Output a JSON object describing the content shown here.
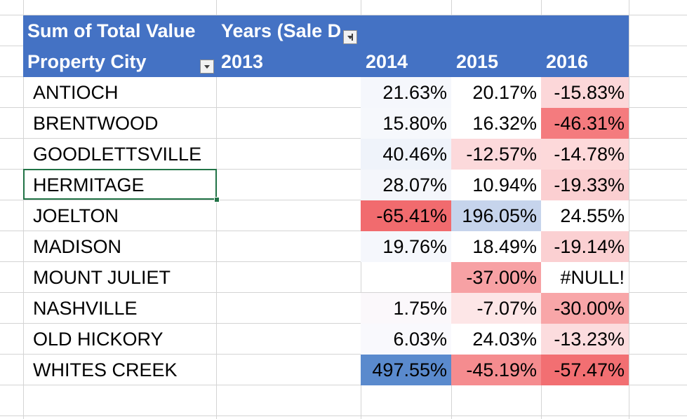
{
  "pivot": {
    "values_label": "Sum of Total Value",
    "columns_label": "Years (Sale D",
    "rows_label": "Property City",
    "year_headers": [
      "2013",
      "2014",
      "2015",
      "2016"
    ]
  },
  "rows": [
    {
      "city": "ANTIOCH",
      "cells": [
        {
          "text": "",
          "bg": ""
        },
        {
          "text": "21.63%",
          "bg": "#f5f7fc"
        },
        {
          "text": "20.17%",
          "bg": "#ffffff"
        },
        {
          "text": "-15.83%",
          "bg": "#fcd7d9"
        }
      ]
    },
    {
      "city": "BRENTWOOD",
      "cells": [
        {
          "text": "",
          "bg": ""
        },
        {
          "text": "15.80%",
          "bg": "#f6f8fc"
        },
        {
          "text": "16.32%",
          "bg": "#ffffff"
        },
        {
          "text": "-46.31%",
          "bg": "#f47b7e"
        }
      ]
    },
    {
      "city": "GOODLETTSVILLE",
      "cells": [
        {
          "text": "",
          "bg": ""
        },
        {
          "text": "40.46%",
          "bg": "#eff3fa"
        },
        {
          "text": "-12.57%",
          "bg": "#fcd9db"
        },
        {
          "text": "-14.78%",
          "bg": "#fdd9da"
        }
      ]
    },
    {
      "city": "HERMITAGE",
      "cells": [
        {
          "text": "",
          "bg": ""
        },
        {
          "text": "28.07%",
          "bg": "#f4f6fb"
        },
        {
          "text": "10.94%",
          "bg": "#ffffff"
        },
        {
          "text": "-19.33%",
          "bg": "#fbcfd1"
        }
      ]
    },
    {
      "city": "JOELTON",
      "cells": [
        {
          "text": "",
          "bg": ""
        },
        {
          "text": "-65.41%",
          "bg": "#f16b6e"
        },
        {
          "text": "196.05%",
          "bg": "#c6d4ec"
        },
        {
          "text": "24.55%",
          "bg": "#ffffff"
        }
      ]
    },
    {
      "city": "MADISON",
      "cells": [
        {
          "text": "",
          "bg": ""
        },
        {
          "text": "19.76%",
          "bg": "#f5f7fc"
        },
        {
          "text": "18.49%",
          "bg": "#ffffff"
        },
        {
          "text": "-19.14%",
          "bg": "#fbd0d2"
        }
      ]
    },
    {
      "city": "MOUNT JULIET",
      "cells": [
        {
          "text": "",
          "bg": ""
        },
        {
          "text": "",
          "bg": ""
        },
        {
          "text": "-37.00%",
          "bg": "#f7a1a4"
        },
        {
          "text": "#NULL!",
          "bg": "#ffffff"
        }
      ]
    },
    {
      "city": "NASHVILLE",
      "cells": [
        {
          "text": "",
          "bg": ""
        },
        {
          "text": "1.75%",
          "bg": "#fbf8fb"
        },
        {
          "text": "-7.07%",
          "bg": "#fde6e7"
        },
        {
          "text": "-30.00%",
          "bg": "#f8a6a8"
        }
      ]
    },
    {
      "city": "OLD HICKORY",
      "cells": [
        {
          "text": "",
          "bg": ""
        },
        {
          "text": "6.03%",
          "bg": "#f9f9fd"
        },
        {
          "text": "24.03%",
          "bg": "#ffffff"
        },
        {
          "text": "-13.23%",
          "bg": "#fcdcde"
        }
      ]
    },
    {
      "city": "WHITES CREEK",
      "cells": [
        {
          "text": "",
          "bg": ""
        },
        {
          "text": "497.55%",
          "bg": "#5a8acd"
        },
        {
          "text": "-45.19%",
          "bg": "#f58c8f"
        },
        {
          "text": "-57.47%",
          "bg": "#f26f72"
        }
      ]
    }
  ],
  "colors": {
    "header_band": "#4472c4",
    "gridline": "#d4d4d4",
    "selection_border": "#217346"
  },
  "icons": {
    "rows_filter": "dropdown-arrow-icon",
    "columns_filter": "filter-funnel-icon"
  },
  "selected_cell": "HERMITAGE"
}
